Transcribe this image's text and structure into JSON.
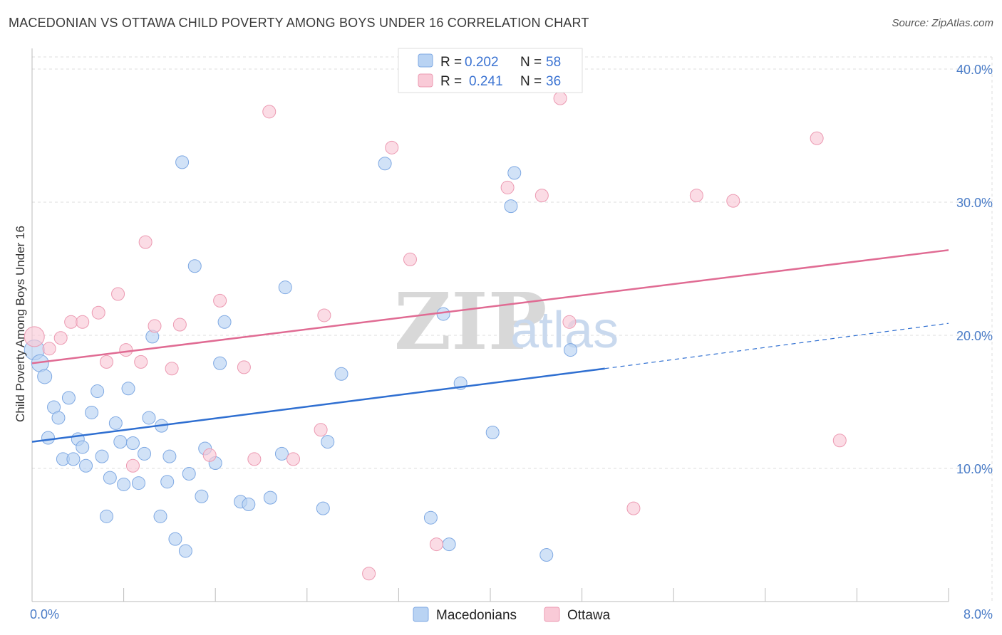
{
  "title": "MACEDONIAN VS OTTAWA CHILD POVERTY AMONG BOYS UNDER 16 CORRELATION CHART",
  "source": "Source: ZipAtlas.com",
  "watermark": {
    "zip": "ZIP",
    "atlas": "atlas"
  },
  "legend": {
    "r_label": "R =",
    "n_label": "N =",
    "rows": [
      {
        "r": "0.202",
        "n": "58",
        "fill": "#b9d3f3",
        "stroke": "#7fa9e3"
      },
      {
        "r": "0.241",
        "n": "36",
        "fill": "#f9cad7",
        "stroke": "#ec9ab2"
      }
    ]
  },
  "bottom_legend": [
    {
      "label": "Macedonians",
      "fill": "#b9d3f3",
      "stroke": "#7fa9e3"
    },
    {
      "label": "Ottawa",
      "fill": "#f9cad7",
      "stroke": "#ec9ab2"
    }
  ],
  "chart_data": {
    "type": "scatter",
    "title": "MACEDONIAN VS OTTAWA CHILD POVERTY AMONG BOYS UNDER 16 CORRELATION CHART",
    "xlabel": "",
    "ylabel": "Child Poverty Among Boys Under 16",
    "xlim": [
      0,
      8
    ],
    "ylim": [
      0,
      40
    ],
    "x_ticks": [
      "0.0%",
      "8.0%"
    ],
    "y_ticks": [
      {
        "v": 10,
        "label": "10.0%"
      },
      {
        "v": 20,
        "label": "20.0%"
      },
      {
        "v": 30,
        "label": "30.0%"
      },
      {
        "v": 40,
        "label": "40.0%"
      }
    ],
    "grid": true,
    "series": [
      {
        "name": "Macedonians",
        "color": "#7fa9e3",
        "fill": "#b9d3f3",
        "trend": {
          "x0": 0.0,
          "y0": 12.0,
          "x1": 5.0,
          "y1": 17.5,
          "dash_to_x": 8.0,
          "dash_to_y": 20.9
        },
        "points": [
          [
            0.02,
            18.9,
            14
          ],
          [
            0.07,
            17.9,
            12
          ],
          [
            0.11,
            16.9,
            10
          ],
          [
            0.14,
            12.3,
            9
          ],
          [
            0.19,
            14.6,
            9
          ],
          [
            0.23,
            13.8,
            9
          ],
          [
            0.27,
            10.7,
            9
          ],
          [
            0.32,
            15.3,
            9
          ],
          [
            0.36,
            10.7,
            9
          ],
          [
            0.4,
            12.2,
            9
          ],
          [
            0.44,
            11.6,
            9
          ],
          [
            0.47,
            10.2,
            9
          ],
          [
            0.52,
            14.2,
            9
          ],
          [
            0.57,
            15.8,
            9
          ],
          [
            0.61,
            10.9,
            9
          ],
          [
            0.68,
            9.3,
            9
          ],
          [
            0.73,
            13.4,
            9
          ],
          [
            0.77,
            12.0,
            9
          ],
          [
            0.8,
            8.8,
            9
          ],
          [
            0.84,
            16.0,
            9
          ],
          [
            0.88,
            11.9,
            9
          ],
          [
            0.93,
            8.9,
            9
          ],
          [
            0.98,
            11.1,
            9
          ],
          [
            1.02,
            13.8,
            9
          ],
          [
            1.05,
            19.9,
            9
          ],
          [
            1.13,
            13.2,
            9
          ],
          [
            1.18,
            9.0,
            9
          ],
          [
            1.2,
            10.9,
            9
          ],
          [
            0.65,
            6.4,
            9
          ],
          [
            1.12,
            6.4,
            9
          ],
          [
            1.25,
            4.7,
            9
          ],
          [
            1.31,
            33.0,
            9
          ],
          [
            1.34,
            3.8,
            9
          ],
          [
            1.37,
            9.6,
            9
          ],
          [
            1.42,
            25.2,
            9
          ],
          [
            1.48,
            7.9,
            9
          ],
          [
            1.51,
            11.5,
            9
          ],
          [
            1.6,
            10.4,
            9
          ],
          [
            1.64,
            17.9,
            9
          ],
          [
            1.68,
            21.0,
            9
          ],
          [
            1.82,
            7.5,
            9
          ],
          [
            1.89,
            7.3,
            9
          ],
          [
            2.08,
            7.8,
            9
          ],
          [
            2.18,
            11.1,
            9
          ],
          [
            2.21,
            23.6,
            9
          ],
          [
            2.54,
            7.0,
            9
          ],
          [
            2.58,
            12.0,
            9
          ],
          [
            2.7,
            17.1,
            9
          ],
          [
            3.08,
            32.9,
            9
          ],
          [
            3.48,
            6.3,
            9
          ],
          [
            3.59,
            21.6,
            9
          ],
          [
            3.64,
            4.3,
            9
          ],
          [
            3.74,
            16.4,
            9
          ],
          [
            4.02,
            12.7,
            9
          ],
          [
            4.18,
            29.7,
            9
          ],
          [
            4.21,
            32.2,
            9
          ],
          [
            4.49,
            3.5,
            9
          ],
          [
            4.7,
            18.9,
            9
          ]
        ]
      },
      {
        "name": "Ottawa",
        "color": "#ec9ab2",
        "fill": "#f9cad7",
        "trend": {
          "x0": 0.0,
          "y0": 17.9,
          "x1": 8.0,
          "y1": 26.4
        },
        "points": [
          [
            0.02,
            19.9,
            14
          ],
          [
            0.15,
            19.0,
            9
          ],
          [
            0.25,
            19.8,
            9
          ],
          [
            0.34,
            21.0,
            9
          ],
          [
            0.44,
            21.0,
            9
          ],
          [
            0.58,
            21.7,
            9
          ],
          [
            0.65,
            18.0,
            9
          ],
          [
            0.75,
            23.1,
            9
          ],
          [
            0.82,
            18.9,
            9
          ],
          [
            0.88,
            10.2,
            9
          ],
          [
            0.95,
            18.0,
            9
          ],
          [
            0.99,
            27.0,
            9
          ],
          [
            1.07,
            20.7,
            9
          ],
          [
            1.22,
            17.5,
            9
          ],
          [
            1.29,
            20.8,
            9
          ],
          [
            1.55,
            11.0,
            9
          ],
          [
            1.64,
            22.6,
            9
          ],
          [
            1.85,
            17.6,
            9
          ],
          [
            1.94,
            10.7,
            9
          ],
          [
            2.07,
            36.8,
            9
          ],
          [
            2.28,
            10.7,
            9
          ],
          [
            2.52,
            12.9,
            9
          ],
          [
            2.55,
            21.5,
            9
          ],
          [
            2.94,
            2.1,
            9
          ],
          [
            3.14,
            34.1,
            9
          ],
          [
            3.3,
            25.7,
            9
          ],
          [
            3.53,
            4.3,
            9
          ],
          [
            4.15,
            31.1,
            9
          ],
          [
            4.45,
            30.5,
            9
          ],
          [
            4.61,
            37.8,
            9
          ],
          [
            4.69,
            21.0,
            9
          ],
          [
            5.25,
            7.0,
            9
          ],
          [
            5.8,
            30.5,
            9
          ],
          [
            6.12,
            30.1,
            9
          ],
          [
            6.85,
            34.8,
            9
          ],
          [
            7.05,
            12.1,
            9
          ]
        ]
      }
    ]
  }
}
